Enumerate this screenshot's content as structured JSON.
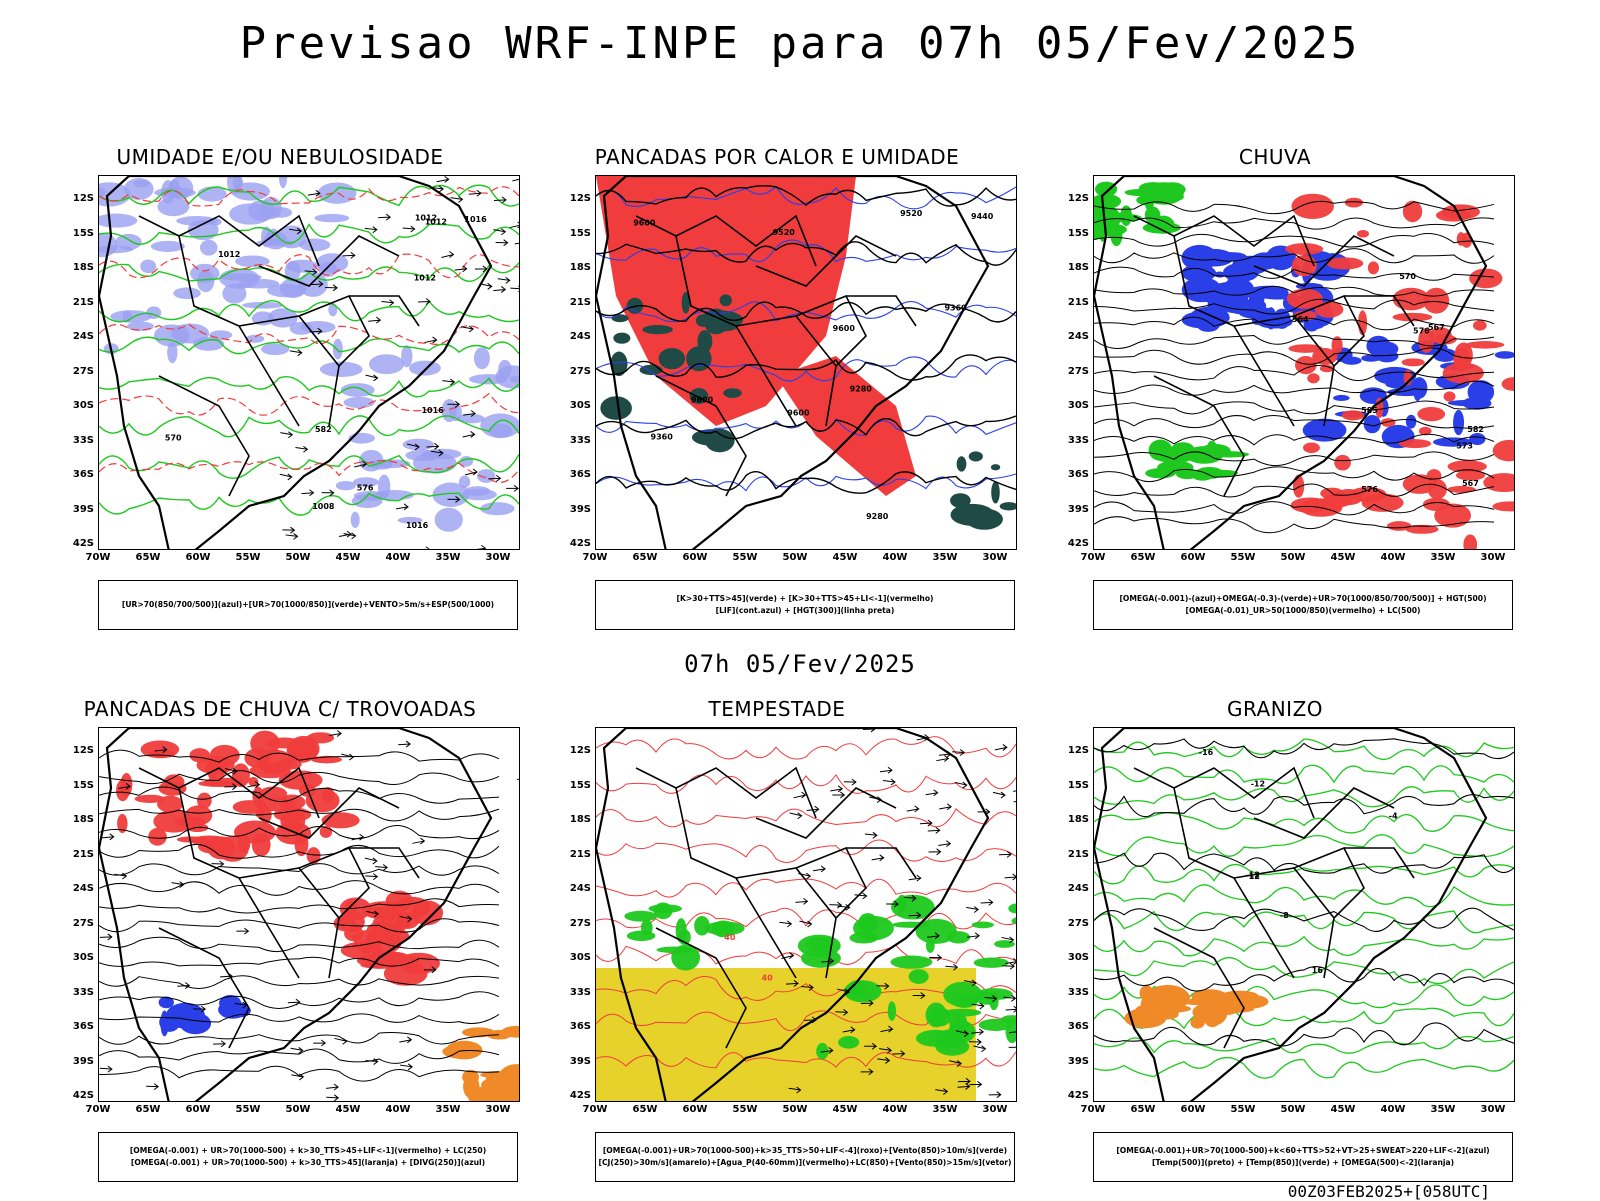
{
  "title": "Previsao WRF-INPE  para 07h 05/Fev/2025",
  "subtitle": "07h 05/Fev/2025",
  "footer": "00Z03FEB2025+[058UTC]",
  "axes": {
    "lat_labels": [
      "12S",
      "15S",
      "18S",
      "21S",
      "24S",
      "27S",
      "30S",
      "33S",
      "36S",
      "39S",
      "42S"
    ],
    "lon_labels": [
      "70W",
      "65W",
      "60W",
      "55W",
      "50W",
      "45W",
      "40W",
      "35W",
      "30W"
    ]
  },
  "colors": {
    "blue": "#2a3fe8",
    "light_blue": "#9aa0f0",
    "green": "#1ec81e",
    "red": "#f03c3c",
    "dark_teal": "#1f4a45",
    "yellow": "#e6d22a",
    "orange": "#f08a28"
  },
  "panels": [
    {
      "id": "umidade",
      "title": "UMIDADE E/OU NEBULOSIDADE",
      "legend": [
        "[UR>70(850/700/500)](azul)+[UR>70(1000/850)](verde)+VENTO>5m/s+ESP(500/1000)"
      ],
      "contour_labels": [
        "1012",
        "1012",
        "1016",
        "1016",
        "1012",
        "1008",
        "1012",
        "1016",
        "576",
        "570",
        "582"
      ]
    },
    {
      "id": "pancadas_calor",
      "title": "PANCADAS POR CALOR E UMIDADE",
      "legend": [
        "[K>30+TTS>45](verde) + [K>30+TTS>45+LI<-1](vermelho)",
        "[LIF](cont.azul) + [HGT(300)](linha preta)"
      ],
      "contour_labels": [
        "9600",
        "9520",
        "9600",
        "9600",
        "9600",
        "9520",
        "9440",
        "9360",
        "9280",
        "9280",
        "9360"
      ]
    },
    {
      "id": "chuva",
      "title": "CHUVA",
      "legend": [
        "[OMEGA(-0.001)-(azul)+OMEGA(-0.3)-(verde)+UR>70(1000/850/700/500)] + HGT(500)",
        "[OMEGA(-0.01)_UR>50(1000/850)(vermelho) + LC(500)"
      ],
      "contour_labels": [
        "585",
        "582",
        "576",
        "573",
        "576",
        "570",
        "567",
        "564",
        "567"
      ]
    },
    {
      "id": "trovoadas",
      "title": "PANCADAS DE CHUVA C/ TROVOADAS",
      "legend": [
        "[OMEGA(-0.001) + UR>70(1000-500) + k>30_TTS>45+LIF<-1](vermelho) + LC(250)",
        "[OMEGA(-0.001) + UR>70(1000-500) + k>30_TTS>45](laranja) + [DIVG(250)](azul)"
      ],
      "contour_labels": []
    },
    {
      "id": "tempestade",
      "title": "TEMPESTADE",
      "legend": [
        "[OMEGA(-0.001)+UR>70(1000-500)+k>35_TTS>50+LIF<-4](roxo)+[Vento(850)>10m/s](verde)",
        "[CJ(250)>30m/s](amarelo)+[Agua_P(40-60mm)](vermelho)+LC(850)+[Vento(850)>15m/s](vetor)"
      ],
      "contour_labels": [
        "40",
        "40"
      ]
    },
    {
      "id": "granizo",
      "title": "GRANIZO",
      "legend": [
        "[OMEGA(-0.001)+UR>70(1000-500)+k<60+TTS>52+VT>25+SWEAT>220+LIF<-2](azul)",
        "[Temp(500)](preto) + [Temp(850)](verde) + [OMEGA(500)<-2](laranja)"
      ],
      "contour_labels": [
        "-4",
        "-8",
        "-12",
        "-16",
        "12",
        "16",
        "-12"
      ]
    }
  ]
}
